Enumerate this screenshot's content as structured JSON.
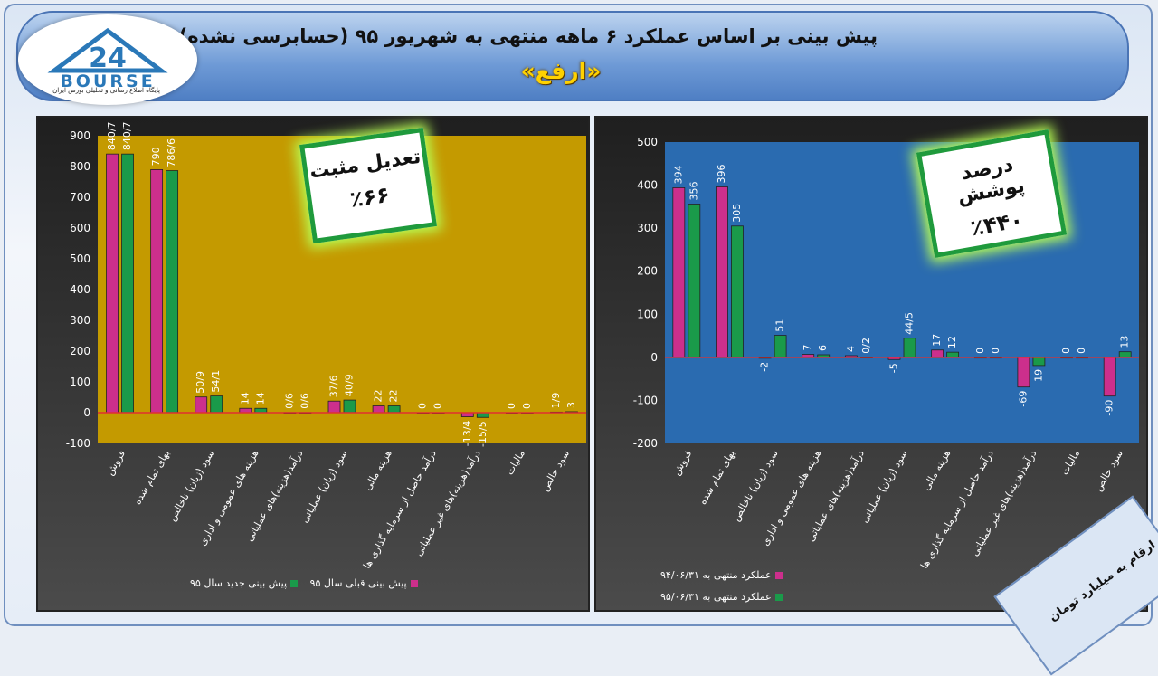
{
  "header": {
    "title": "پیش بینی بر اساس عملکرد ۶ ماهه منتهی به شهریور ۹۵ (حسابرسی نشده)",
    "subtitle": "«ارفع»"
  },
  "logo": {
    "text": "BOURSE",
    "number": "24",
    "tagline": "پایگاه اطلاع رسانی و تحلیلی بورس ایران"
  },
  "colors": {
    "series_pink": "#cc2f8c",
    "series_green": "#1a9a4a",
    "left_plot_bg": "#c49a00",
    "right_plot_bg": "#2a6bb0",
    "zero_line": "#e03030"
  },
  "annotations": {
    "left": {
      "line1": "تعدیل مثبت",
      "line2": "٪۶۶"
    },
    "right": {
      "line1": "درصد پوشش",
      "line2": "٪۴۴۰"
    }
  },
  "footer_note": "ارقام به میلیارد تومان",
  "chart_data": [
    {
      "type": "bar",
      "categories": [
        "فروش",
        "بهای تمام شده",
        "سود (زیان) ناخالص",
        "هزینه های عمومی و اداری",
        "درآمد(هزینه)های عملیاتی",
        "سود (زیان) عملیاتی",
        "هزینه مالی",
        "درآمد حاصل از سرمایه گذاری ها",
        "درآمد(هزینه)های غیر عملیاتی",
        "مالیات",
        "سود خالص"
      ],
      "series": [
        {
          "name": "پیش بینی قبلی سال ۹۵",
          "values": [
            840.7,
            790,
            50.9,
            14,
            0.6,
            37.6,
            22,
            0,
            -13.4,
            0,
            1.9
          ],
          "labels": [
            "840/7",
            "790",
            "50/9",
            "14",
            "0/6",
            "37/6",
            "22",
            "0",
            "-13/4",
            "0",
            "1/9"
          ]
        },
        {
          "name": "پیش بینی جدید سال ۹۵",
          "values": [
            840.7,
            786.6,
            54.1,
            14,
            0.6,
            40.9,
            22,
            0,
            -15.5,
            0,
            3
          ],
          "labels": [
            "840/7",
            "786/6",
            "54/1",
            "14",
            "0/6",
            "40/9",
            "22",
            "0",
            "-15/5",
            "0",
            "3"
          ]
        }
      ],
      "ylim": [
        -100,
        900
      ],
      "yticks": [
        -100,
        0,
        100,
        200,
        300,
        400,
        500,
        600,
        700,
        800,
        900
      ],
      "grid": false,
      "legend": "bottom"
    },
    {
      "type": "bar",
      "categories": [
        "فروش",
        "بهای تمام شده",
        "سود (زیان) ناخالص",
        "هزینه های عمومی و اداری",
        "درآمد(هزینه)های عملیاتی",
        "سود (زیان) عملیاتی",
        "هزینه مالی",
        "درآمد حاصل از سرمایه گذاری ها",
        "درآمد(هزینه)های غیر عملیاتی",
        "مالیات",
        "سود خالص"
      ],
      "series": [
        {
          "name": "عملکرد منتهی به ۹۴/۰۶/۳۱",
          "values": [
            394,
            396,
            -2,
            7,
            4,
            -5,
            17,
            0,
            -69,
            0,
            -90
          ],
          "labels": [
            "394",
            "396",
            "-2",
            "7",
            "4",
            "-5",
            "17",
            "0",
            "-69",
            "0",
            "-90"
          ]
        },
        {
          "name": "عملکرد منتهی به ۹۵/۰۶/۳۱",
          "values": [
            356,
            305,
            51,
            6,
            0.2,
            44.5,
            12,
            0,
            -19,
            0,
            13
          ],
          "labels": [
            "356",
            "305",
            "51",
            "6",
            "0/2",
            "44/5",
            "12",
            "0",
            "-19",
            "0",
            "13"
          ]
        }
      ],
      "ylim": [
        -200,
        500
      ],
      "yticks": [
        -200,
        -100,
        0,
        100,
        200,
        300,
        400,
        500
      ],
      "grid": false,
      "legend": "bottom"
    }
  ]
}
